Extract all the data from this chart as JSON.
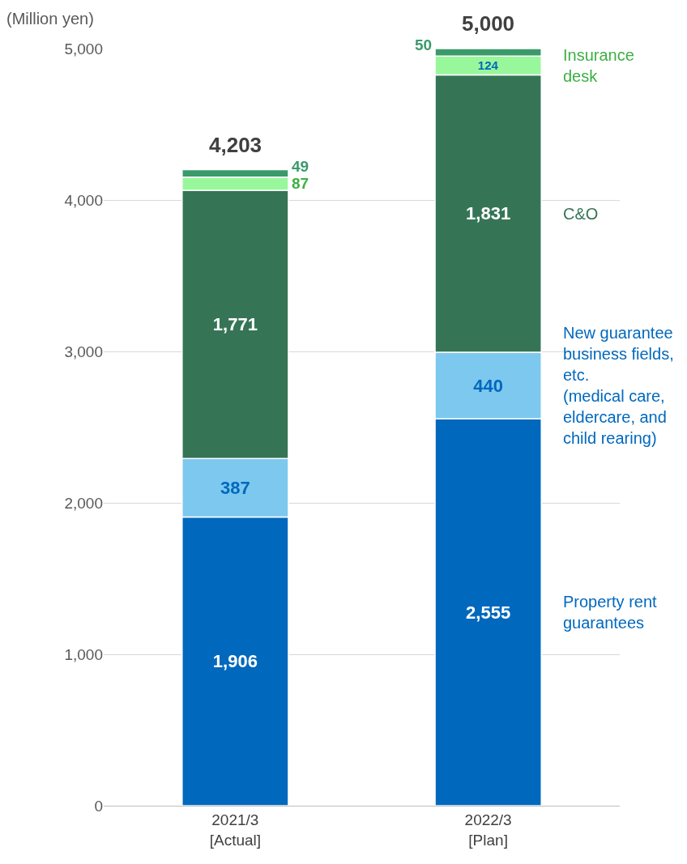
{
  "chart_data": {
    "type": "bar",
    "stacked": true,
    "ylabel": "(Million yen)",
    "categories": [
      "2021/3\n[Actual]",
      "2022/3\n[Plan]"
    ],
    "series": [
      {
        "name": "Property rent\nguarantees",
        "color": "#0068bd",
        "values": [
          1906,
          2555
        ],
        "value_labels": [
          "1,906",
          "2,555"
        ]
      },
      {
        "name": "New guarantee\nbusiness fields,\netc.\n(medical care,\neldercare, and\nchild rearing)",
        "color": "#7dc8ee",
        "values": [
          387,
          440
        ],
        "value_labels": [
          "387",
          "440"
        ]
      },
      {
        "name": "C&O",
        "color": "#357556",
        "values": [
          1771,
          1831
        ],
        "value_labels": [
          "1,771",
          "1,831"
        ]
      },
      {
        "name": "Insurance\ndesk",
        "color": "#99f79b",
        "values": [
          87,
          124
        ],
        "value_labels": [
          "87",
          "124"
        ]
      },
      {
        "color": "#3a9a6a",
        "values": [
          49,
          50
        ],
        "value_labels": [
          "49",
          "50"
        ]
      }
    ],
    "totals": [
      "4,203",
      "5,000"
    ],
    "ylim": [
      0,
      5000
    ],
    "yticks": [
      0,
      {
        "value": 1000,
        "label": "1,000"
      },
      {
        "value": 2000,
        "label": "2,000"
      },
      {
        "value": 3000,
        "label": "3,000"
      },
      {
        "value": 4000,
        "label": "4,000"
      },
      {
        "value": 5000,
        "label": "5,000"
      }
    ],
    "grid": "y",
    "legend": false
  }
}
